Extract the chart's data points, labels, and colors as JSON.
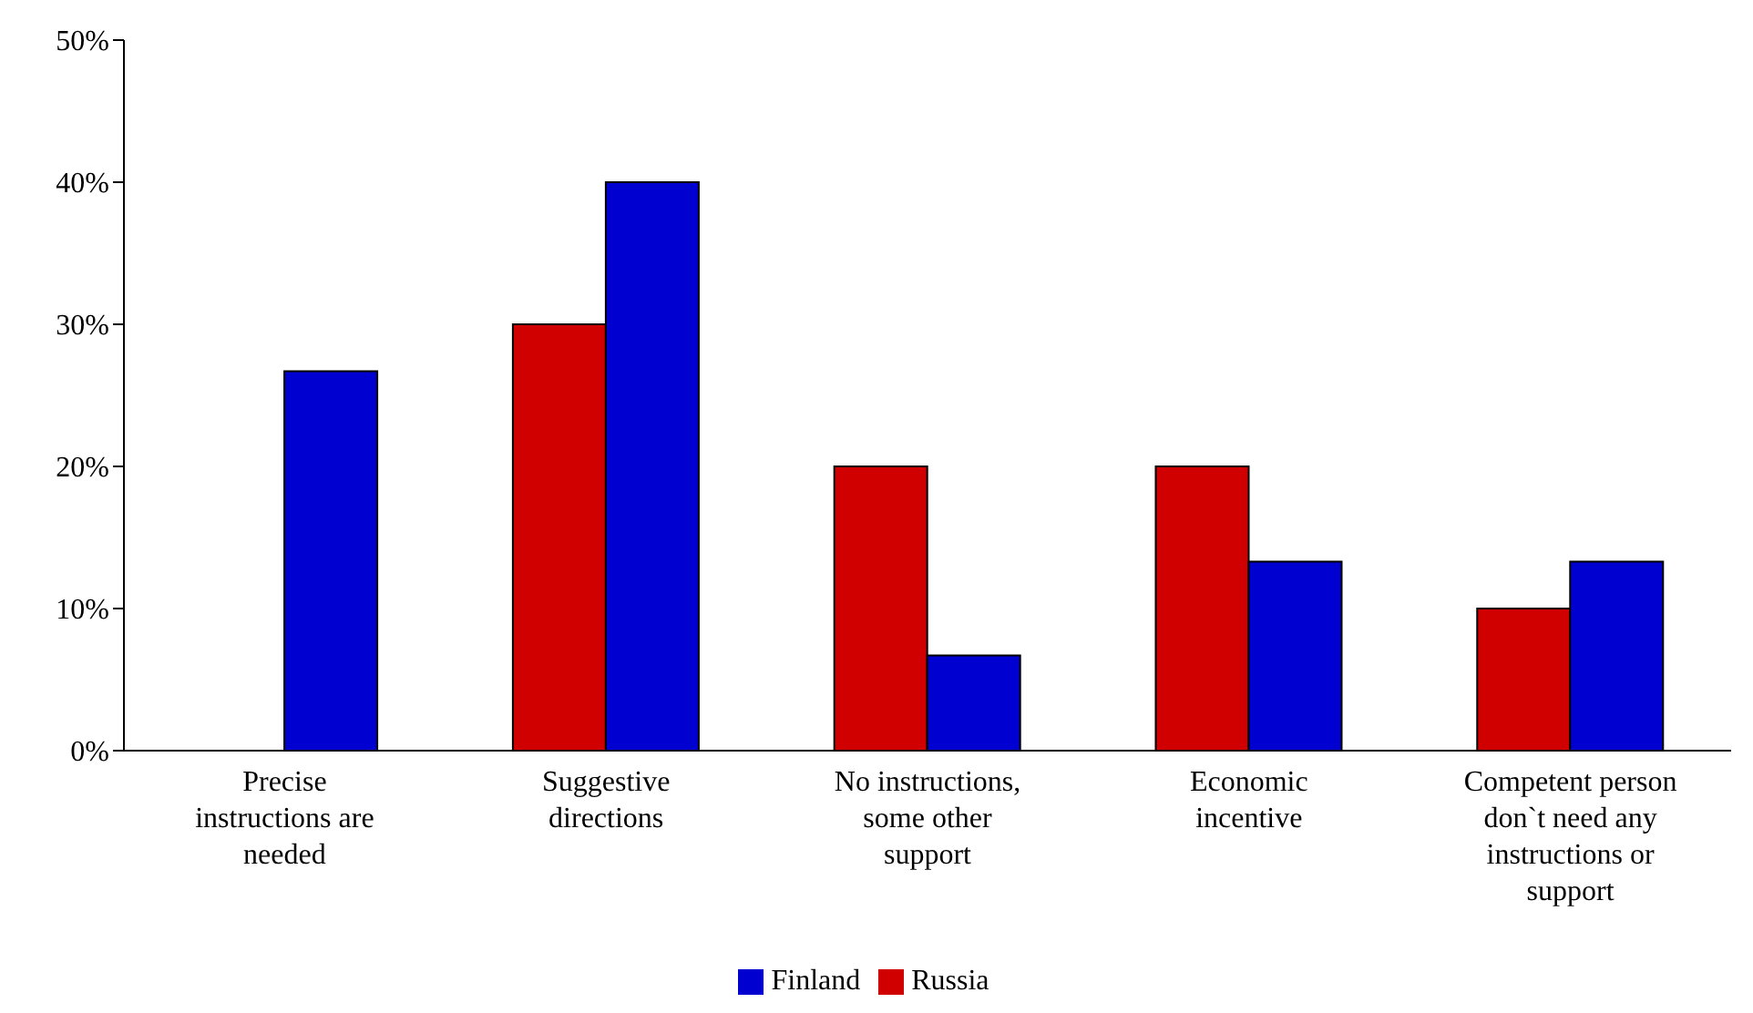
{
  "chart_data": {
    "type": "bar",
    "categories": [
      "Precise instructions are needed",
      "Suggestive directions",
      "No instructions, some other support",
      "Economic incentive",
      "Competent person don`t need any instructions or support"
    ],
    "series": [
      {
        "name": "Russia",
        "color": "#d00000",
        "values": [
          0,
          30,
          20,
          20,
          10
        ]
      },
      {
        "name": "Finland",
        "color": "#0000d0",
        "values": [
          26.7,
          40,
          6.7,
          13.3,
          13.3
        ]
      }
    ],
    "ylim": [
      0,
      50
    ],
    "yticks": [
      {
        "value": 0,
        "label": "0%"
      },
      {
        "value": 10,
        "label": "10%"
      },
      {
        "value": 20,
        "label": "20%"
      },
      {
        "value": 30,
        "label": "30%"
      },
      {
        "value": 40,
        "label": "40%"
      },
      {
        "value": 50,
        "label": "50%"
      }
    ],
    "grid": false,
    "legend": "bottom"
  }
}
